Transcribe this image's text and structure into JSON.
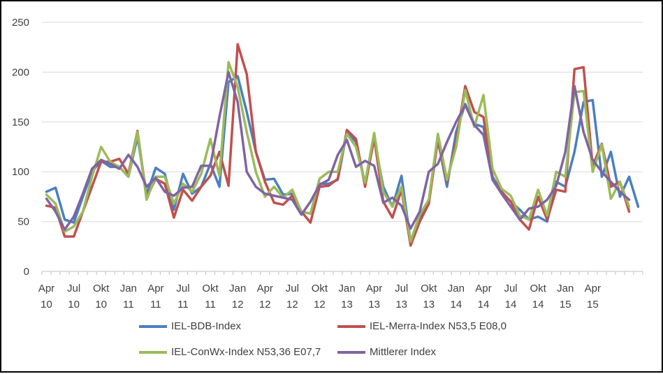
{
  "chart_data": {
    "type": "line",
    "title": "",
    "xlabel": "",
    "ylabel": "",
    "ylim": [
      0,
      250
    ],
    "yticks": [
      0,
      50,
      100,
      150,
      200,
      250
    ],
    "grid": "horizontal",
    "legend_position": "bottom",
    "x_labels": [
      {
        "index": 0,
        "month": "Apr",
        "year": "10"
      },
      {
        "index": 3,
        "month": "Jul",
        "year": "10"
      },
      {
        "index": 6,
        "month": "Okt",
        "year": "10"
      },
      {
        "index": 9,
        "month": "Jan",
        "year": "11"
      },
      {
        "index": 12,
        "month": "Apr",
        "year": "11"
      },
      {
        "index": 15,
        "month": "Jul",
        "year": "11"
      },
      {
        "index": 18,
        "month": "Okt",
        "year": "11"
      },
      {
        "index": 21,
        "month": "Jan",
        "year": "12"
      },
      {
        "index": 24,
        "month": "Apr",
        "year": "12"
      },
      {
        "index": 27,
        "month": "Jul",
        "year": "12"
      },
      {
        "index": 30,
        "month": "Okt",
        "year": "12"
      },
      {
        "index": 33,
        "month": "Jan",
        "year": "13"
      },
      {
        "index": 36,
        "month": "Apr",
        "year": "13"
      },
      {
        "index": 39,
        "month": "Jul",
        "year": "13"
      },
      {
        "index": 42,
        "month": "Okt",
        "year": "13"
      },
      {
        "index": 45,
        "month": "Jan",
        "year": "14"
      },
      {
        "index": 48,
        "month": "Apr",
        "year": "14"
      },
      {
        "index": 51,
        "month": "Jul",
        "year": "14"
      },
      {
        "index": 54,
        "month": "Okt",
        "year": "14"
      },
      {
        "index": 57,
        "month": "Jan",
        "year": "15"
      },
      {
        "index": 60,
        "month": "Apr",
        "year": "15"
      }
    ],
    "series": [
      {
        "name": "IEL-BDB-Index",
        "color": "#4a7fc1",
        "values": [
          80,
          84,
          52,
          49,
          75,
          100,
          111,
          105,
          105,
          95,
          135,
          77,
          104,
          98,
          62,
          98,
          78,
          85,
          108,
          85,
          190,
          196,
          160,
          120,
          92,
          93,
          77,
          78,
          60,
          58,
          88,
          88,
          92,
          140,
          130,
          88,
          133,
          85,
          65,
          96,
          30,
          55,
          70,
          132,
          85,
          140,
          168,
          148,
          145,
          95,
          80,
          70,
          62,
          52,
          55,
          50,
          90,
          85,
          120,
          170,
          172,
          95,
          120,
          75,
          95,
          65
        ]
      },
      {
        "name": "IEL-Merra-Index N53,5 E08,0",
        "color": "#c0504d",
        "values": [
          66,
          64,
          35,
          35,
          60,
          85,
          110,
          110,
          113,
          98,
          141,
          74,
          93,
          88,
          54,
          82,
          71,
          85,
          96,
          120,
          86,
          228,
          198,
          120,
          90,
          69,
          67,
          76,
          60,
          49,
          85,
          86,
          93,
          142,
          133,
          85,
          134,
          70,
          54,
          82,
          26,
          50,
          68,
          133,
          90,
          130,
          186,
          160,
          155,
          92,
          80,
          70,
          52,
          42,
          75,
          52,
          82,
          80,
          203,
          205,
          106,
          128,
          85,
          90,
          60
        ]
      },
      {
        "name": "IEL-ConWx-Index N53,36 E07,7",
        "color": "#9bbb59",
        "values": [
          77,
          68,
          40,
          45,
          60,
          95,
          125,
          110,
          105,
          95,
          140,
          72,
          95,
          95,
          68,
          88,
          80,
          98,
          133,
          96,
          210,
          185,
          140,
          100,
          75,
          85,
          74,
          82,
          60,
          58,
          93,
          100,
          100,
          138,
          125,
          89,
          139,
          80,
          65,
          85,
          30,
          57,
          72,
          138,
          92,
          125,
          182,
          145,
          177,
          103,
          83,
          76,
          56,
          52,
          82,
          56,
          100,
          95,
          180,
          181,
          100,
          127,
          73,
          90,
          65
        ]
      },
      {
        "name": "Mittlerer Index",
        "color": "#8064a2",
        "values": [
          73,
          60,
          42,
          55,
          78,
          103,
          112,
          108,
          103,
          117,
          105,
          85,
          94,
          80,
          76,
          84,
          85,
          106,
          106,
          155,
          200,
          170,
          100,
          85,
          78,
          76,
          74,
          72,
          57,
          70,
          87,
          92,
          117,
          132,
          105,
          111,
          106,
          69,
          74,
          66,
          43,
          60,
          100,
          108,
          130,
          150,
          167,
          147,
          137,
          92,
          78,
          65,
          52,
          63,
          65,
          72,
          86,
          120,
          186,
          140,
          112,
          100,
          90,
          80,
          72
        ]
      }
    ]
  }
}
